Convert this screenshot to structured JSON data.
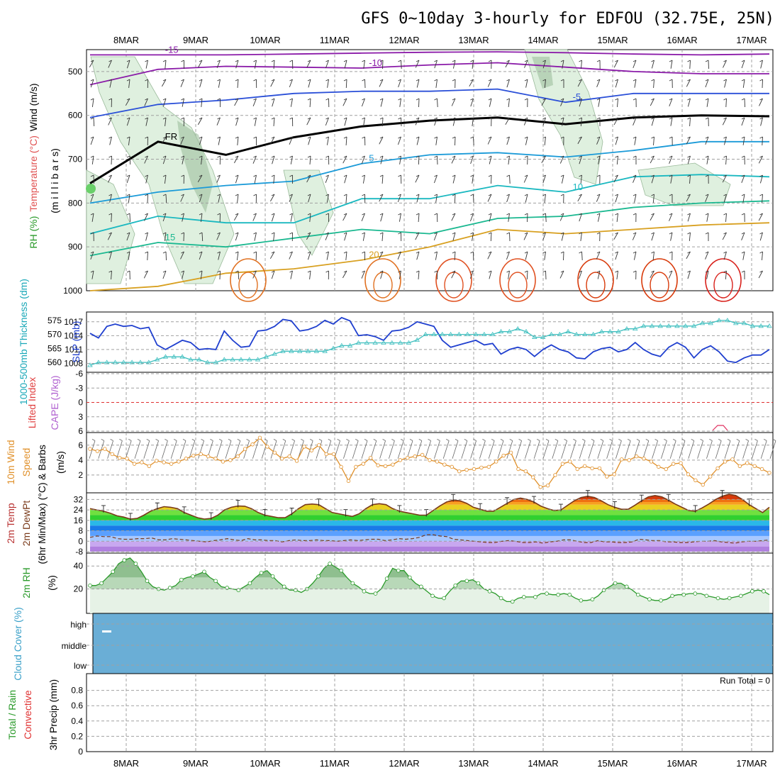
{
  "title": "GFS 0~10day 3-hourly for EDFOU (32.75E, 25N)",
  "dates": [
    "8MAR",
    "9MAR",
    "10MAR",
    "11MAR",
    "12MAR",
    "13MAR",
    "14MAR",
    "15MAR",
    "16MAR",
    "17MAR"
  ],
  "colors": {
    "grid": "#a0a0a0",
    "rh_fill": "#dff0df",
    "rh_dark": "#9fbf9f",
    "slp": "#1f3fcf",
    "thickness": "#3fbfbf",
    "wind10": "#e0902a",
    "temp_max": "#e05010",
    "rh2m": "#2a9a2a",
    "cloud": "#6aaed6"
  },
  "chart_data": [
    {
      "type": "line",
      "panel": "upper-air",
      "ylabel_parts": [
        "Wind (m/s)",
        "Temperature (°C)",
        "RH (%)",
        "(m i l l i b a r s)"
      ],
      "yticks": [
        "500",
        "600",
        "700",
        "800",
        "900",
        "1000"
      ],
      "ylim": [
        1000,
        450
      ],
      "freezing_label": "FR",
      "isotherms": [
        {
          "temp": -15,
          "label": "-15",
          "color": "#8a1aa8",
          "levels_mb": [
            462,
            462,
            462,
            460,
            458,
            456,
            455,
            457,
            460,
            462,
            460
          ]
        },
        {
          "temp": -10,
          "label": "-10",
          "color": "#8a1aa8",
          "levels_mb": [
            530,
            495,
            488,
            490,
            492,
            485,
            480,
            490,
            500,
            505,
            505
          ]
        },
        {
          "temp": -5,
          "label": "-5",
          "color": "#2a4fd8",
          "levels_mb": [
            605,
            575,
            565,
            550,
            545,
            545,
            540,
            570,
            550,
            550,
            550
          ]
        },
        {
          "temp": 0,
          "label": "FR",
          "color": "#000000",
          "levels_mb": [
            755,
            660,
            690,
            650,
            625,
            612,
            605,
            620,
            605,
            600,
            602
          ]
        },
        {
          "temp": 5,
          "label": "5",
          "color": "#1a9ad8",
          "levels_mb": [
            800,
            775,
            760,
            750,
            710,
            690,
            685,
            695,
            680,
            660,
            660
          ]
        },
        {
          "temp": 10,
          "label": "10",
          "color": "#1ab8c0",
          "levels_mb": [
            870,
            830,
            845,
            845,
            790,
            790,
            760,
            775,
            740,
            735,
            740
          ]
        },
        {
          "temp": 15,
          "label": "15",
          "color": "#1ab890",
          "levels_mb": [
            920,
            890,
            900,
            880,
            860,
            870,
            835,
            830,
            810,
            800,
            795
          ]
        },
        {
          "temp": 20,
          "label": "20",
          "color": "#d8a020",
          "levels_mb": [
            1000,
            990,
            960,
            950,
            930,
            900,
            860,
            870,
            860,
            850,
            845
          ]
        }
      ]
    },
    {
      "type": "line",
      "panel": "slp-thickness",
      "ylabel_left": "1000-500mb Thickness (dm)",
      "ylabel_right": "SLP (mb)",
      "thickness_ticks": [
        "575",
        "570",
        "565",
        "560"
      ],
      "slp_ticks": [
        "1017",
        "1014",
        "1011",
        "1008"
      ],
      "slp_mb": [
        1014.5,
        1013.5,
        1016,
        1016.5,
        1016,
        1016.2,
        1015.5,
        1015.8,
        1012,
        1011,
        1012,
        1013,
        1012.5,
        1011,
        1011.2,
        1011,
        1015,
        1013,
        1011.5,
        1011.7,
        1015,
        1015.2,
        1016,
        1017.5,
        1017.2,
        1015,
        1015.3,
        1016,
        1017.3,
        1016.5,
        1017.9,
        1017.2,
        1014,
        1014.2,
        1013.8,
        1013,
        1015,
        1015.2,
        1015.8,
        1017,
        1016.5,
        1016,
        1013,
        1011.5,
        1012,
        1012.5,
        1013,
        1012,
        1012.3,
        1010,
        1011,
        1011.5,
        1011,
        1009.5,
        1011,
        1012,
        1011,
        1010.5,
        1009.2,
        1009,
        1010.5,
        1011.2,
        1011.5,
        1010.5,
        1011,
        1012.5,
        1011,
        1010,
        1009.5,
        1011.5,
        1012.5,
        1011.5,
        1009.2,
        1011,
        1011.8,
        1010.5,
        1008.5,
        1008.2,
        1009.2,
        1009.8,
        1009.8,
        1011
      ],
      "thickness_dm": [
        559,
        560,
        560,
        560,
        560,
        560,
        560,
        560,
        561,
        562,
        562,
        562,
        561,
        561,
        560,
        560,
        561,
        561,
        561,
        561,
        561,
        562,
        563,
        564,
        564,
        564,
        564,
        564,
        564,
        565,
        566,
        566,
        567,
        567,
        567,
        567,
        567,
        567,
        567,
        568,
        570,
        570,
        570,
        570,
        570,
        570,
        570,
        570,
        570,
        571,
        571,
        572,
        571,
        569,
        569,
        570,
        570,
        571,
        570,
        570,
        570,
        571,
        571,
        571,
        572,
        572,
        573,
        573,
        573,
        573,
        573,
        573,
        573,
        574,
        574,
        575,
        575,
        574,
        574,
        573,
        573,
        573
      ]
    },
    {
      "type": "line",
      "panel": "lifted-index-cape",
      "ylabel_parts": [
        "Lifted Index",
        "CAPE (J/kg)"
      ],
      "yticks": [
        "-6",
        "-3",
        "0",
        "3",
        "6"
      ],
      "zero_line": 0
    },
    {
      "type": "line",
      "panel": "wind10m",
      "ylabel_parts": [
        "10m Wind",
        "Speed",
        "& Barbs",
        "(m/s)"
      ],
      "yticks": [
        "6",
        "4",
        "2"
      ],
      "ylim": [
        0,
        7.5
      ],
      "speed_ms": [
        5.5,
        5.2,
        5.5,
        4.8,
        4.3,
        4.2,
        3.5,
        3.7,
        3.2,
        3.9,
        3.7,
        3.5,
        3.8,
        4.2,
        4.6,
        4.8,
        4.5,
        4.2,
        3.8,
        4.0,
        4.5,
        5.5,
        6.1,
        7.0,
        5.8,
        5.0,
        4.2,
        4.5,
        3.9,
        5.8,
        5.3,
        6.0,
        4.8,
        4.8,
        3.1,
        1.2,
        3.1,
        3.5,
        4.3,
        3.3,
        3.2,
        3.4,
        4.0,
        4.3,
        4.5,
        4.7,
        4.0,
        3.8,
        3.4,
        3.1,
        2.5,
        2.7,
        2.8,
        3.0,
        3.1,
        3.8,
        4.6,
        5.0,
        2.8,
        2.5,
        1.7,
        0.4,
        0.6,
        2.0,
        3.5,
        3.8,
        2.8,
        3.2,
        2.9,
        2.9,
        1.8,
        2.1,
        4.1,
        4.0,
        4.5,
        4.2,
        3.8,
        3.1,
        2.8,
        3.5,
        3.6,
        2.1,
        1.3,
        0.7,
        1.8,
        2.9,
        3.8,
        4.1,
        3.2,
        3.6,
        3.2,
        2.8,
        2.3
      ]
    },
    {
      "type": "area",
      "panel": "temp2m",
      "ylabel_parts": [
        "2m Temp",
        "2m DewPt",
        "(6hr Min/Max) (°C)"
      ],
      "yticks": [
        "32",
        "24",
        "16",
        "8",
        "0",
        "-8"
      ],
      "ylim": [
        -8,
        36
      ],
      "temp_c": [
        25,
        24,
        23,
        21.5,
        19.5,
        18.5,
        17,
        17.5,
        20,
        23,
        25,
        26.5,
        26,
        25,
        22,
        20,
        18,
        17,
        17.5,
        20,
        24,
        26,
        27,
        26.8,
        25,
        22,
        20,
        19,
        18,
        18,
        21,
        25,
        28,
        28.5,
        28,
        25,
        22,
        21,
        20,
        19,
        21,
        25,
        28,
        28.8,
        28,
        25,
        23,
        22,
        21,
        20,
        20,
        23.5,
        27,
        30,
        31.5,
        31,
        29,
        26,
        24.5,
        23,
        23,
        26,
        29,
        32,
        33,
        32,
        30,
        27,
        25,
        23.5,
        24,
        27.5,
        31,
        33.5,
        34.5,
        33.5,
        31,
        28,
        26,
        24.5,
        24.5,
        27.5,
        31,
        34,
        35,
        34,
        31.5,
        28.5,
        26,
        23.5,
        23,
        25.5,
        28.5,
        32,
        34.5,
        36,
        35,
        32,
        28,
        25,
        22,
        26
      ],
      "dewpt_c": [
        3,
        4,
        3.5,
        3.5,
        2,
        1.5,
        1.5,
        2,
        2,
        2.5,
        1,
        1,
        2,
        1.5,
        1,
        0.5,
        0,
        -0.5,
        0.5,
        1,
        2,
        1,
        0.5,
        2,
        1,
        1,
        0.5,
        0.5,
        -0.5,
        0.5,
        1,
        0.5,
        0.5,
        1,
        0.5,
        0.5,
        0,
        0.5,
        1,
        0.5,
        1,
        1.5,
        1.5,
        0.5,
        1,
        2,
        1.5,
        2,
        3,
        5,
        5,
        4,
        3.5,
        1.5,
        1,
        0.5,
        0,
        -0.5,
        -1,
        -1,
        0,
        0.5,
        0,
        -1,
        -1,
        -0.5,
        -1.5,
        -0.5,
        0,
        1,
        1,
        0,
        -1,
        -1,
        0.5,
        -0.5,
        -0.5,
        -1,
        -1,
        -0.5,
        1.5,
        1,
        0.5,
        0.5,
        -0.5,
        -0.5,
        -1,
        -1,
        -0.5,
        0,
        0,
        0.5,
        -0.5,
        -1,
        -1.5,
        -0.5,
        0,
        0,
        0.5,
        1
      ],
      "temp_bands": [
        {
          "from": -8,
          "to": -4,
          "color": "#b080e0"
        },
        {
          "from": -4,
          "to": 0,
          "color": "#c8a8f0"
        },
        {
          "from": 0,
          "to": 4,
          "color": "#a8c8ff"
        },
        {
          "from": 4,
          "to": 8,
          "color": "#5aa0ff"
        },
        {
          "from": 8,
          "to": 12,
          "color": "#1a7ae8"
        },
        {
          "from": 12,
          "to": 16,
          "color": "#2ab8e8"
        },
        {
          "from": 16,
          "to": 20,
          "color": "#30d030"
        },
        {
          "from": 20,
          "to": 24,
          "color": "#70e040"
        },
        {
          "from": 24,
          "to": 28,
          "color": "#e8d020"
        },
        {
          "from": 28,
          "to": 30,
          "color": "#f8a020"
        },
        {
          "from": 30,
          "to": 32,
          "color": "#f07010"
        },
        {
          "from": 32,
          "to": 40,
          "color": "#d83a0a"
        }
      ]
    },
    {
      "type": "area",
      "panel": "rh2m",
      "ylabel_parts": [
        "2m RH",
        "(%)"
      ],
      "yticks": [
        "40",
        "20"
      ],
      "ylim": [
        0,
        50
      ],
      "rh_percent": [
        23,
        23,
        25,
        30,
        35,
        42,
        45,
        47,
        42,
        35,
        27,
        22,
        20,
        19,
        21,
        23,
        28,
        30,
        31,
        33,
        35,
        30,
        27,
        22,
        21,
        20,
        19,
        22,
        25,
        30,
        34,
        36,
        31,
        26,
        22,
        19,
        19,
        17,
        20,
        25,
        31,
        38,
        42,
        39,
        36,
        30,
        25,
        22,
        18,
        16,
        16,
        20,
        29,
        38,
        36,
        36,
        30,
        25,
        22,
        18,
        14,
        12,
        12,
        18,
        23,
        27,
        27,
        28,
        25,
        20,
        18,
        16,
        12,
        9,
        9,
        12,
        13,
        13,
        13,
        16,
        16,
        15,
        15,
        16,
        15,
        12,
        10,
        10,
        11,
        14,
        19,
        22,
        25,
        25,
        22,
        19,
        15,
        13,
        11,
        10,
        10,
        11,
        14,
        15,
        15,
        16,
        16,
        16,
        14,
        13,
        12,
        11,
        12,
        13,
        14,
        16,
        18,
        19,
        18,
        15
      ],
      "dark_threshold": 30
    },
    {
      "type": "heatmap",
      "panel": "cloud",
      "ylabel": "Cloud Cover (%)",
      "rows": [
        "high",
        "middle",
        "low"
      ],
      "coverage_note": "full",
      "fill": "#6aaed6"
    },
    {
      "type": "bar",
      "panel": "precip",
      "ylabel_parts": [
        "Total / Rain",
        "Convective",
        "3hr Precip (mm)"
      ],
      "yticks": [
        "0.8",
        "0.6",
        "0.4",
        "0.2",
        "0"
      ],
      "ylim": [
        0,
        1.0
      ],
      "run_total_label": "Run Total = 0",
      "values": []
    }
  ]
}
